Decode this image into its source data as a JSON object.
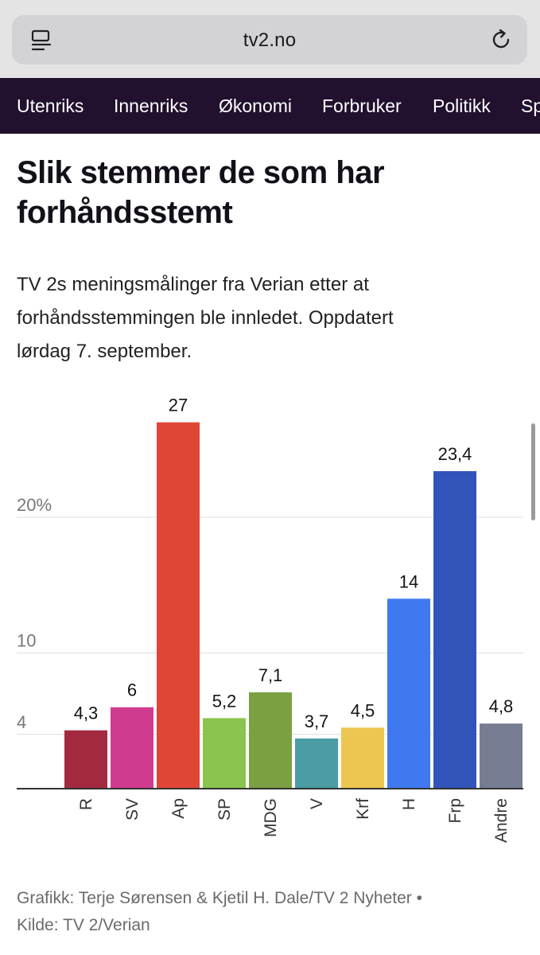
{
  "browser": {
    "url": "tv2.no",
    "reader_icon": "reader-mode-icon",
    "reload_icon": "reload-icon"
  },
  "nav": {
    "items": [
      "Utenriks",
      "Innenriks",
      "Økonomi",
      "Forbruker",
      "Politikk",
      "Sport"
    ]
  },
  "article": {
    "title_line1": "Slik stemmer de som har",
    "title_line2": "forhåndsstemt",
    "subtitle_line1": "TV 2s meningsmålinger fra Verian etter at",
    "subtitle_line2": "forhåndsstemmingen ble innledet. Oppdatert",
    "subtitle_line3": "lørdag 7. september."
  },
  "chart_data": {
    "type": "bar",
    "title": "Slik stemmer de som har forhåndsstemt",
    "categories": [
      "R",
      "SV",
      "Ap",
      "SP",
      "MDG",
      "V",
      "Krf",
      "H",
      "Frp",
      "Andre"
    ],
    "values": [
      4.3,
      6,
      27,
      5.2,
      7.1,
      3.7,
      4.5,
      14,
      23.4,
      4.8
    ],
    "value_labels": [
      "4,3",
      "6",
      "27",
      "5,2",
      "7,1",
      "3,7",
      "4,5",
      "14",
      "23,4",
      "4,8"
    ],
    "colors": [
      "#a3293f",
      "#d03a8f",
      "#e04634",
      "#8bc34f",
      "#7aa041",
      "#4b9ca4",
      "#ecc651",
      "#3f79f0",
      "#3253ba",
      "#767d92"
    ],
    "yticks": [
      4,
      10,
      20
    ],
    "ytick_labels": [
      "4",
      "10",
      "20%"
    ],
    "ylim": [
      0,
      27
    ],
    "grid": true,
    "xlabel": "",
    "ylabel": ""
  },
  "footer": {
    "line1": "Grafikk: Terje Sørensen & Kjetil H. Dale/TV 2 Nyheter •",
    "line2": "Kilde: TV 2/Verian"
  }
}
